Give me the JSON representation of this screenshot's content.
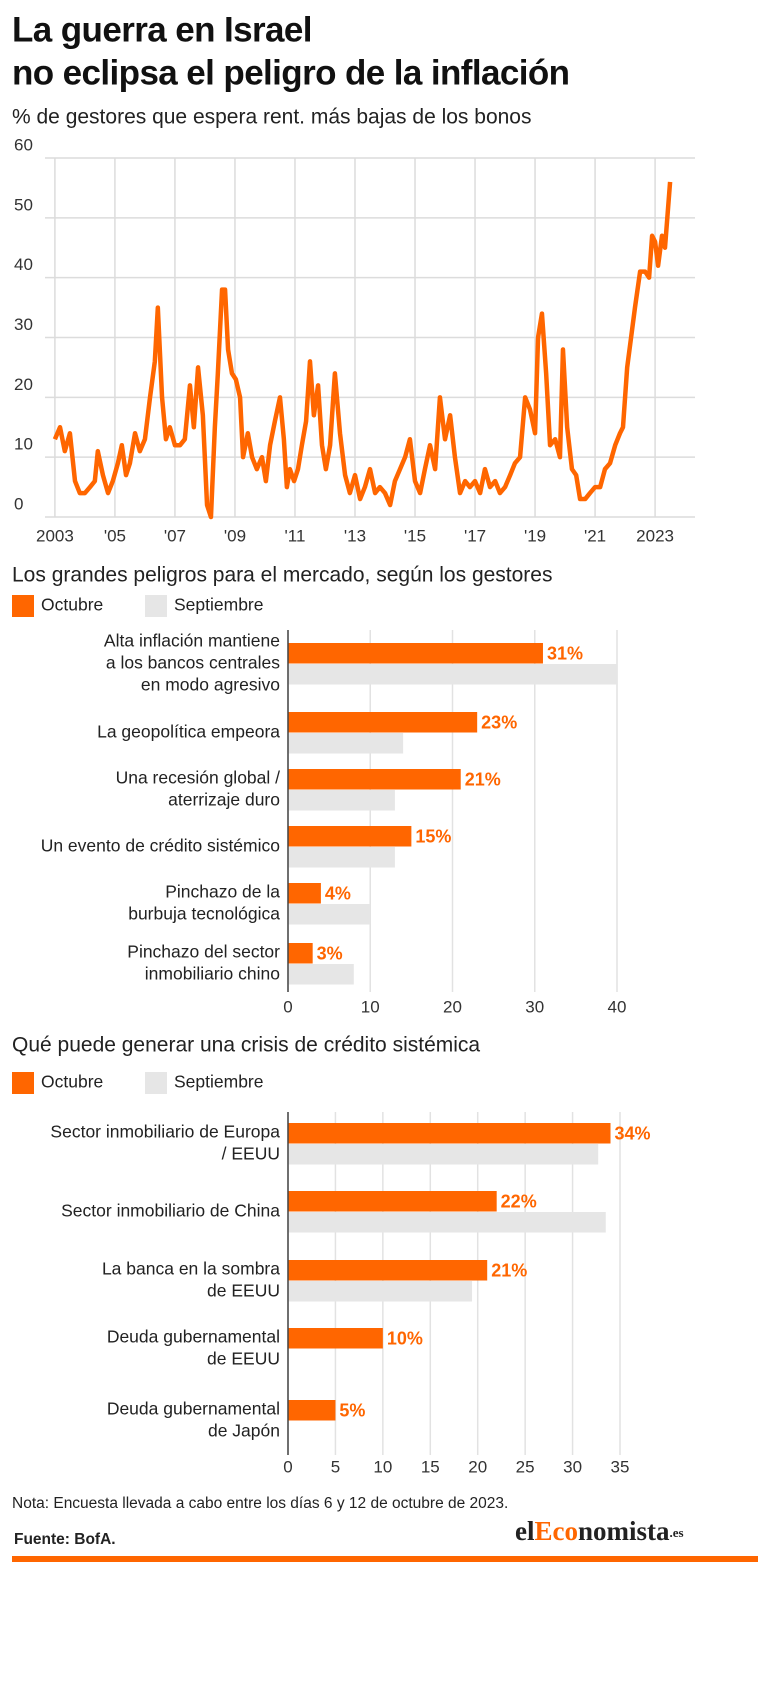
{
  "chart_data": [
    {
      "type": "line",
      "title": [
        "La guerra en Israel",
        "no eclipsa el peligro de la inflación"
      ],
      "subtitle": "% de gestores que espera rent. más bajas de los bonos",
      "color": "#ff6600",
      "x": [
        2003.0,
        2003.17,
        2003.33,
        2003.5,
        2003.67,
        2003.83,
        2004,
        2004.17,
        2004.33,
        2004.43,
        2004.6,
        2004.77,
        2004.93,
        2005.1,
        2005.23,
        2005.37,
        2005.5,
        2005.67,
        2005.83,
        2006,
        2006.17,
        2006.33,
        2006.43,
        2006.57,
        2006.7,
        2006.83,
        2007,
        2007.17,
        2007.33,
        2007.5,
        2007.63,
        2007.77,
        2007.93,
        2008.07,
        2008.2,
        2008.33,
        2008.43,
        2008.57,
        2008.67,
        2008.77,
        2008.9,
        2009.03,
        2009.17,
        2009.27,
        2009.43,
        2009.57,
        2009.73,
        2009.9,
        2010.03,
        2010.17,
        2010.33,
        2010.5,
        2010.63,
        2010.73,
        2010.83,
        2010.97,
        2011.1,
        2011.23,
        2011.37,
        2011.5,
        2011.63,
        2011.77,
        2011.9,
        2012.03,
        2012.17,
        2012.33,
        2012.5,
        2012.67,
        2012.83,
        2013,
        2013.17,
        2013.33,
        2013.5,
        2013.67,
        2013.83,
        2014,
        2014.17,
        2014.33,
        2014.5,
        2014.67,
        2014.83,
        2015,
        2015.17,
        2015.33,
        2015.5,
        2015.67,
        2015.83,
        2016,
        2016.17,
        2016.33,
        2016.5,
        2016.67,
        2016.83,
        2017,
        2017.17,
        2017.33,
        2017.5,
        2017.67,
        2017.83,
        2018,
        2018.17,
        2018.33,
        2018.5,
        2018.67,
        2018.83,
        2019,
        2019.1,
        2019.23,
        2019.37,
        2019.5,
        2019.67,
        2019.83,
        2019.93,
        2020.07,
        2020.23,
        2020.37,
        2020.5,
        2020.67,
        2020.83,
        2021,
        2021.17,
        2021.33,
        2021.5,
        2021.67,
        2021.83,
        2021.93,
        2022.07,
        2022.2,
        2022.33,
        2022.5,
        2022.67,
        2022.8,
        2022.9,
        2023,
        2023.1,
        2023.23,
        2023.33,
        2023.5
      ],
      "values": [
        13,
        15,
        11,
        14,
        6,
        4,
        4,
        5,
        6,
        11,
        7,
        4,
        6,
        9,
        12,
        7,
        9,
        14,
        11,
        13,
        20,
        26,
        35,
        20,
        13,
        15,
        12,
        12,
        13,
        22,
        15,
        25,
        17,
        2,
        0,
        15,
        24,
        38,
        38,
        28,
        24,
        23,
        20,
        10,
        14,
        10,
        8,
        10,
        6,
        12,
        16,
        20,
        13,
        5,
        8,
        6,
        8,
        12,
        16,
        26,
        17,
        22,
        12,
        8,
        12,
        24,
        14,
        7,
        4,
        7,
        3,
        5,
        8,
        4,
        5,
        4,
        2,
        6,
        8,
        10,
        13,
        6,
        4,
        8,
        12,
        8,
        20,
        13,
        17,
        10,
        4,
        6,
        5,
        6,
        4,
        8,
        5,
        6,
        4,
        5,
        7,
        9,
        10,
        20,
        18,
        14,
        30,
        34,
        24,
        12,
        13,
        10,
        28,
        15,
        8,
        7,
        3,
        3,
        4,
        5,
        5,
        8,
        9,
        12,
        14,
        15,
        25,
        30,
        35,
        41,
        41,
        40,
        47,
        46,
        42,
        47,
        45,
        56
      ],
      "xlim": [
        2002.67,
        2024.33
      ],
      "xticks": [
        2003,
        {
          "value": 2005,
          "label": "'05"
        },
        {
          "value": 2007,
          "label": "'07"
        },
        {
          "value": 2009,
          "label": "'09"
        },
        {
          "value": 2011,
          "label": "'11"
        },
        {
          "value": 2013,
          "label": "'13"
        },
        {
          "value": 2015,
          "label": "'15"
        },
        {
          "value": 2017,
          "label": "'17"
        },
        {
          "value": 2019,
          "label": "'19"
        },
        {
          "value": 2021,
          "label": "'21"
        },
        2023
      ],
      "ylim": [
        0,
        60
      ],
      "yticks": [
        0,
        10,
        20,
        30,
        40,
        50,
        60
      ],
      "grid": true
    },
    {
      "type": "hbar",
      "title": "Los grandes peligros para el mercado, según los gestores",
      "categories": [
        [
          "Alta inflación mantiene",
          "a los bancos centrales",
          "en modo agresivo"
        ],
        [
          "La geopolítica empeora"
        ],
        [
          "Una recesión global /",
          "aterrizaje duro"
        ],
        [
          "Un evento de crédito sistémico"
        ],
        [
          "Pinchazo de la",
          "burbuja tecnológica"
        ],
        [
          "Pinchazo del sector",
          "inmobiliario chino"
        ]
      ],
      "series": [
        {
          "name": "Octubre",
          "color": "#ff6600",
          "values": [
            31,
            23,
            21,
            15,
            4,
            3
          ],
          "value_labels": [
            "31%",
            "23%",
            "21%",
            "15%",
            "4%",
            "3%"
          ]
        },
        {
          "name": "Septiembre",
          "color": "#e6e6e6",
          "values": [
            40,
            14,
            13,
            13,
            10,
            8
          ]
        }
      ],
      "xlim": [
        0,
        40
      ],
      "xticks": [
        0,
        10,
        20,
        30,
        40
      ],
      "grid": true
    },
    {
      "type": "hbar",
      "title": "Qué puede generar una crisis de crédito sistémica",
      "categories": [
        [
          "Sector inmobiliario de Europa",
          "/ EEUU"
        ],
        [
          "Sector inmobiliario de China"
        ],
        [
          "La banca en la sombra",
          "de EEUU"
        ],
        [
          "Deuda gubernamental",
          "de EEUU"
        ],
        [
          "Deuda gubernamental",
          "de Japón"
        ]
      ],
      "series": [
        {
          "name": "Octubre",
          "color": "#ff6600",
          "values": [
            34,
            22,
            21,
            10,
            5
          ],
          "value_labels": [
            "34%",
            "22%",
            "21%",
            "10%",
            "5%"
          ]
        },
        {
          "name": "Septiembre",
          "color": "#e6e6e6",
          "values": [
            32.7,
            33.5,
            19.4,
            null,
            null
          ]
        }
      ],
      "xlim": [
        0,
        35
      ],
      "xticks": [
        0,
        5,
        10,
        15,
        20,
        25,
        30,
        35
      ],
      "grid": true
    }
  ],
  "note": "Nota: Encuesta llevada a cabo entre los días 6 y 12 de octubre de 2023.",
  "source": "Fuente: BofA.",
  "logo": [
    "el",
    "Eco",
    "nomista",
    ".es"
  ]
}
